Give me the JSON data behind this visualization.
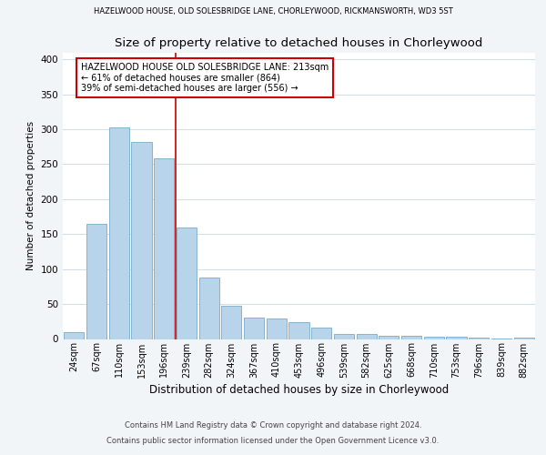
{
  "title_top": "HAZELWOOD HOUSE, OLD SOLESBRIDGE LANE, CHORLEYWOOD, RICKMANSWORTH, WD3 5ST",
  "title_main": "Size of property relative to detached houses in Chorleywood",
  "xlabel": "Distribution of detached houses by size in Chorleywood",
  "ylabel": "Number of detached properties",
  "bar_labels": [
    "24sqm",
    "67sqm",
    "110sqm",
    "153sqm",
    "196sqm",
    "239sqm",
    "282sqm",
    "324sqm",
    "367sqm",
    "410sqm",
    "453sqm",
    "496sqm",
    "539sqm",
    "582sqm",
    "625sqm",
    "668sqm",
    "710sqm",
    "753sqm",
    "796sqm",
    "839sqm",
    "882sqm"
  ],
  "bar_values": [
    10,
    165,
    303,
    282,
    259,
    160,
    88,
    48,
    31,
    29,
    24,
    16,
    7,
    7,
    5,
    5,
    3,
    3,
    2,
    1,
    2
  ],
  "bar_color": "#b8d4ea",
  "bar_edge_color": "#7aaaca",
  "vline_x": 4.5,
  "vline_color": "#cc0000",
  "annotation_title": "HAZELWOOD HOUSE OLD SOLESBRIDGE LANE: 213sqm",
  "annotation_line2": "← 61% of detached houses are smaller (864)",
  "annotation_line3": "39% of semi-detached houses are larger (556) →",
  "annotation_box_color": "#cc0000",
  "ylim": [
    0,
    410
  ],
  "yticks": [
    0,
    50,
    100,
    150,
    200,
    250,
    300,
    350,
    400
  ],
  "footer1": "Contains HM Land Registry data © Crown copyright and database right 2024.",
  "footer2": "Contains public sector information licensed under the Open Government Licence v3.0.",
  "bg_color": "#f2f5f8",
  "plot_bg_color": "#ffffff",
  "grid_color": "#d5dde8"
}
